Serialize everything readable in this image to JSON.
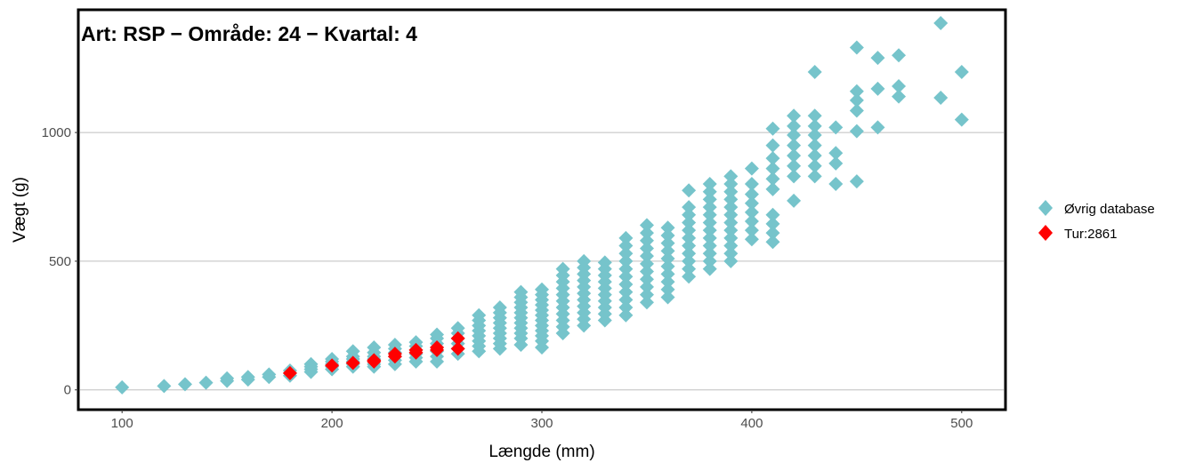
{
  "chart_data": {
    "type": "scatter",
    "title": "Art: RSP − Område: 24 − Kvartal: 4",
    "xlabel": "Længde (mm)",
    "ylabel": "Vægt (g)",
    "xlim": [
      80,
      520
    ],
    "ylim": [
      -70,
      1470
    ],
    "xticks": [
      100,
      200,
      300,
      400,
      500
    ],
    "yticks": [
      0,
      500,
      1000
    ],
    "grid": "horizontal",
    "legend_position": "right",
    "series": [
      {
        "name": "Øvrig database",
        "color": "#76C4CB",
        "marker": "diamond",
        "points": [
          [
            100,
            10
          ],
          [
            120,
            15
          ],
          [
            130,
            22
          ],
          [
            140,
            28
          ],
          [
            150,
            35
          ],
          [
            150,
            45
          ],
          [
            160,
            40
          ],
          [
            160,
            50
          ],
          [
            170,
            50
          ],
          [
            170,
            60
          ],
          [
            180,
            55
          ],
          [
            180,
            65
          ],
          [
            180,
            75
          ],
          [
            190,
            70
          ],
          [
            190,
            80
          ],
          [
            190,
            90
          ],
          [
            190,
            100
          ],
          [
            200,
            80
          ],
          [
            200,
            90
          ],
          [
            200,
            100
          ],
          [
            200,
            110
          ],
          [
            200,
            120
          ],
          [
            210,
            90
          ],
          [
            210,
            100
          ],
          [
            210,
            110
          ],
          [
            210,
            120
          ],
          [
            210,
            130
          ],
          [
            210,
            150
          ],
          [
            220,
            90
          ],
          [
            220,
            100
          ],
          [
            220,
            110
          ],
          [
            220,
            120
          ],
          [
            220,
            130
          ],
          [
            220,
            145
          ],
          [
            220,
            165
          ],
          [
            230,
            100
          ],
          [
            230,
            115
          ],
          [
            230,
            130
          ],
          [
            230,
            145
          ],
          [
            230,
            160
          ],
          [
            230,
            175
          ],
          [
            240,
            110
          ],
          [
            240,
            125
          ],
          [
            240,
            140
          ],
          [
            240,
            155
          ],
          [
            240,
            170
          ],
          [
            240,
            185
          ],
          [
            250,
            110
          ],
          [
            250,
            130
          ],
          [
            250,
            150
          ],
          [
            250,
            165
          ],
          [
            250,
            180
          ],
          [
            250,
            200
          ],
          [
            250,
            215
          ],
          [
            260,
            140
          ],
          [
            260,
            160
          ],
          [
            260,
            180
          ],
          [
            260,
            200
          ],
          [
            260,
            220
          ],
          [
            260,
            240
          ],
          [
            270,
            150
          ],
          [
            270,
            170
          ],
          [
            270,
            190
          ],
          [
            270,
            210
          ],
          [
            270,
            230
          ],
          [
            270,
            250
          ],
          [
            270,
            270
          ],
          [
            270,
            290
          ],
          [
            280,
            160
          ],
          [
            280,
            180
          ],
          [
            280,
            200
          ],
          [
            280,
            220
          ],
          [
            280,
            240
          ],
          [
            280,
            260
          ],
          [
            280,
            280
          ],
          [
            280,
            300
          ],
          [
            280,
            320
          ],
          [
            290,
            175
          ],
          [
            290,
            200
          ],
          [
            290,
            220
          ],
          [
            290,
            240
          ],
          [
            290,
            260
          ],
          [
            290,
            280
          ],
          [
            290,
            300
          ],
          [
            290,
            320
          ],
          [
            290,
            340
          ],
          [
            290,
            360
          ],
          [
            290,
            380
          ],
          [
            300,
            165
          ],
          [
            300,
            190
          ],
          [
            300,
            210
          ],
          [
            300,
            230
          ],
          [
            300,
            250
          ],
          [
            300,
            270
          ],
          [
            300,
            290
          ],
          [
            300,
            310
          ],
          [
            300,
            330
          ],
          [
            300,
            350
          ],
          [
            300,
            370
          ],
          [
            300,
            390
          ],
          [
            310,
            220
          ],
          [
            310,
            245
          ],
          [
            310,
            270
          ],
          [
            310,
            295
          ],
          [
            310,
            320
          ],
          [
            310,
            345
          ],
          [
            310,
            370
          ],
          [
            310,
            395
          ],
          [
            310,
            420
          ],
          [
            310,
            445
          ],
          [
            310,
            470
          ],
          [
            320,
            250
          ],
          [
            320,
            275
          ],
          [
            320,
            300
          ],
          [
            320,
            325
          ],
          [
            320,
            350
          ],
          [
            320,
            375
          ],
          [
            320,
            400
          ],
          [
            320,
            425
          ],
          [
            320,
            450
          ],
          [
            320,
            475
          ],
          [
            320,
            500
          ],
          [
            330,
            270
          ],
          [
            330,
            295
          ],
          [
            330,
            320
          ],
          [
            330,
            345
          ],
          [
            330,
            370
          ],
          [
            330,
            395
          ],
          [
            330,
            420
          ],
          [
            330,
            445
          ],
          [
            330,
            470
          ],
          [
            330,
            495
          ],
          [
            340,
            290
          ],
          [
            340,
            320
          ],
          [
            340,
            350
          ],
          [
            340,
            380
          ],
          [
            340,
            410
          ],
          [
            340,
            440
          ],
          [
            340,
            470
          ],
          [
            340,
            500
          ],
          [
            340,
            530
          ],
          [
            340,
            560
          ],
          [
            340,
            590
          ],
          [
            350,
            340
          ],
          [
            350,
            370
          ],
          [
            350,
            400
          ],
          [
            350,
            430
          ],
          [
            350,
            460
          ],
          [
            350,
            490
          ],
          [
            350,
            520
          ],
          [
            350,
            550
          ],
          [
            350,
            580
          ],
          [
            350,
            610
          ],
          [
            350,
            640
          ],
          [
            360,
            360
          ],
          [
            360,
            390
          ],
          [
            360,
            420
          ],
          [
            360,
            450
          ],
          [
            360,
            480
          ],
          [
            360,
            510
          ],
          [
            360,
            540
          ],
          [
            360,
            570
          ],
          [
            360,
            600
          ],
          [
            360,
            630
          ],
          [
            370,
            440
          ],
          [
            370,
            470
          ],
          [
            370,
            500
          ],
          [
            370,
            530
          ],
          [
            370,
            560
          ],
          [
            370,
            590
          ],
          [
            370,
            620
          ],
          [
            370,
            650
          ],
          [
            370,
            680
          ],
          [
            370,
            710
          ],
          [
            370,
            775
          ],
          [
            380,
            470
          ],
          [
            380,
            500
          ],
          [
            380,
            530
          ],
          [
            380,
            560
          ],
          [
            380,
            590
          ],
          [
            380,
            620
          ],
          [
            380,
            650
          ],
          [
            380,
            680
          ],
          [
            380,
            710
          ],
          [
            380,
            740
          ],
          [
            380,
            770
          ],
          [
            380,
            800
          ],
          [
            390,
            500
          ],
          [
            390,
            530
          ],
          [
            390,
            560
          ],
          [
            390,
            590
          ],
          [
            390,
            620
          ],
          [
            390,
            650
          ],
          [
            390,
            680
          ],
          [
            390,
            710
          ],
          [
            390,
            740
          ],
          [
            390,
            770
          ],
          [
            390,
            800
          ],
          [
            390,
            830
          ],
          [
            400,
            585
          ],
          [
            400,
            620
          ],
          [
            400,
            655
          ],
          [
            400,
            690
          ],
          [
            400,
            725
          ],
          [
            400,
            760
          ],
          [
            400,
            800
          ],
          [
            400,
            860
          ],
          [
            410,
            575
          ],
          [
            410,
            610
          ],
          [
            410,
            645
          ],
          [
            410,
            680
          ],
          [
            410,
            780
          ],
          [
            410,
            820
          ],
          [
            410,
            860
          ],
          [
            410,
            900
          ],
          [
            410,
            950
          ],
          [
            410,
            1015
          ],
          [
            420,
            735
          ],
          [
            420,
            830
          ],
          [
            420,
            870
          ],
          [
            420,
            910
          ],
          [
            420,
            950
          ],
          [
            420,
            990
          ],
          [
            420,
            1025
          ],
          [
            420,
            1065
          ],
          [
            430,
            830
          ],
          [
            430,
            870
          ],
          [
            430,
            910
          ],
          [
            430,
            950
          ],
          [
            430,
            990
          ],
          [
            430,
            1025
          ],
          [
            430,
            1065
          ],
          [
            430,
            1235
          ],
          [
            440,
            800
          ],
          [
            440,
            880
          ],
          [
            440,
            920
          ],
          [
            440,
            1020
          ],
          [
            450,
            810
          ],
          [
            450,
            1005
          ],
          [
            450,
            1085
          ],
          [
            450,
            1125
          ],
          [
            450,
            1160
          ],
          [
            450,
            1330
          ],
          [
            460,
            1020
          ],
          [
            460,
            1170
          ],
          [
            460,
            1290
          ],
          [
            470,
            1140
          ],
          [
            470,
            1180
          ],
          [
            470,
            1300
          ],
          [
            490,
            1135
          ],
          [
            490,
            1425
          ],
          [
            500,
            1050
          ],
          [
            500,
            1235
          ]
        ]
      },
      {
        "name": "Tur:2861",
        "color": "#FF0000",
        "marker": "diamond",
        "points": [
          [
            180,
            65
          ],
          [
            200,
            95
          ],
          [
            210,
            105
          ],
          [
            220,
            110
          ],
          [
            220,
            115
          ],
          [
            230,
            130
          ],
          [
            230,
            140
          ],
          [
            240,
            145
          ],
          [
            240,
            155
          ],
          [
            250,
            155
          ],
          [
            250,
            165
          ],
          [
            260,
            160
          ],
          [
            260,
            200
          ]
        ]
      }
    ]
  }
}
